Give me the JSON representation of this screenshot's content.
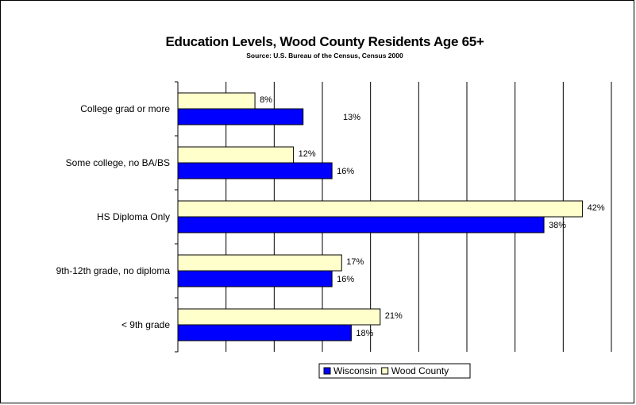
{
  "chart_data": {
    "type": "bar",
    "orientation": "horizontal",
    "title": "Education Levels, Wood County Residents Age 65+",
    "subtitle": "Source: U.S. Bureau of the Census, Census 2000",
    "categories": [
      "College grad or more",
      "Some college, no BA/BS",
      "HS Diploma Only",
      "9th-12th grade, no diploma",
      "< 9th grade"
    ],
    "series": [
      {
        "name": "Wisconsin",
        "color": "#0000ff",
        "values": [
          13,
          16,
          38,
          16,
          18
        ],
        "labels": [
          "13%",
          "16%",
          "38%",
          "16%",
          "18%"
        ]
      },
      {
        "name": "Wood County",
        "color": "#ffffcc",
        "values": [
          8,
          12,
          42,
          17,
          21
        ],
        "labels": [
          "8%",
          "12%",
          "42%",
          "17%",
          "21%"
        ]
      }
    ],
    "xlim": [
      0,
      45
    ],
    "x_gridline_step": 5,
    "grid": true,
    "legend_position": "bottom"
  }
}
